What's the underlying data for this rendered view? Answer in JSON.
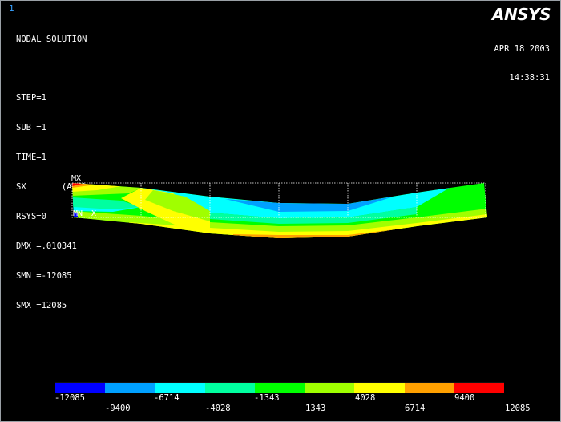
{
  "window": {
    "number": "1"
  },
  "brand": {
    "logo_text": "ANSYS"
  },
  "info": {
    "title": "NODAL SOLUTION",
    "step": "STEP=1",
    "sub": "SUB =1",
    "time": "TIME=1",
    "component": "SX       (AVG)",
    "rsys": "RSYS=0",
    "dmx": "DMX =.010341",
    "smn": "SMN =-12085",
    "smx": "SMX =12085"
  },
  "timestamp": {
    "date": "APR 18 2003",
    "time": "14:38:31"
  },
  "model": {
    "max_marker": "MX",
    "min_marker": "MN",
    "axis_label": "X",
    "element_count": 6,
    "undeformed_shape_color": "#ffffff"
  },
  "legend": {
    "colors": [
      "#0000ff",
      "#00a0ff",
      "#00ffff",
      "#00ffa0",
      "#00ff00",
      "#a0ff00",
      "#ffff00",
      "#ffa000",
      "#ff0000"
    ],
    "upper_labels": [
      "-12085",
      "-6714",
      "-1343",
      "4028",
      "9400"
    ],
    "lower_labels": [
      "-9400",
      "-4028",
      "1343",
      "6714",
      "12085"
    ]
  }
}
